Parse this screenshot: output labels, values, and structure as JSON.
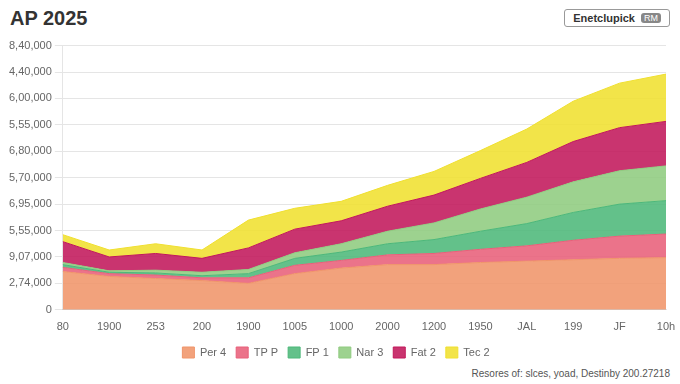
{
  "chart_data": {
    "type": "area",
    "title": "AP 2025",
    "annotations": [
      "Enetclupick",
      "RM",
      "Resores of: slces, yoad, Destinby 200.27218"
    ],
    "categories": [
      "80",
      "1900",
      "253",
      "200",
      "1900",
      "1005",
      "1000",
      "2000",
      "1200",
      "1950",
      "JAL",
      "199",
      "JF",
      "10h"
    ],
    "series": [
      {
        "name": "Per 4",
        "color": "#f0956a",
        "values": [
          55,
          48,
          45,
          42,
          38,
          52,
          60,
          65,
          65,
          68,
          70,
          72,
          74,
          75
        ]
      },
      {
        "name": "TP P",
        "color": "#e8607a",
        "values": [
          6,
          4,
          5,
          4,
          8,
          12,
          11,
          14,
          16,
          19,
          22,
          28,
          32,
          34
        ]
      },
      {
        "name": "FP 1",
        "color": "#4db87a",
        "values": [
          4,
          2,
          3,
          3,
          6,
          10,
          12,
          16,
          20,
          26,
          32,
          40,
          46,
          48
        ]
      },
      {
        "name": "Nar 3",
        "color": "#90cc80",
        "values": [
          3,
          2,
          4,
          5,
          6,
          8,
          12,
          18,
          24,
          32,
          38,
          44,
          48,
          50
        ]
      },
      {
        "name": "Fat 2",
        "color": "#c2185b",
        "values": [
          30,
          20,
          24,
          20,
          31,
          34,
          33,
          36,
          40,
          44,
          50,
          58,
          62,
          64
        ]
      },
      {
        "name": "Tec 2",
        "color": "#f0e030",
        "values": [
          10,
          10,
          14,
          12,
          40,
          30,
          28,
          30,
          34,
          40,
          48,
          58,
          64,
          68
        ]
      }
    ],
    "stacked": true,
    "ylim": [
      0,
      380
    ],
    "yticks": [
      0,
      {
        "value": 38,
        "label": "2,74,000"
      },
      {
        "value": 76,
        "label": "9,07,000"
      },
      {
        "value": 114,
        "label": "5,55,000"
      },
      {
        "value": 152,
        "label": "6,95,000"
      },
      {
        "value": 190,
        "label": "5,70,000"
      },
      {
        "value": 228,
        "label": "6,80,000"
      },
      {
        "value": 266,
        "label": "5,55,000"
      },
      {
        "value": 304,
        "label": "6,00,000"
      },
      {
        "value": 342,
        "label": "4,40,000"
      },
      {
        "value": 380,
        "label": "8,40,000"
      }
    ],
    "grid": "y",
    "legend": "bottom"
  }
}
